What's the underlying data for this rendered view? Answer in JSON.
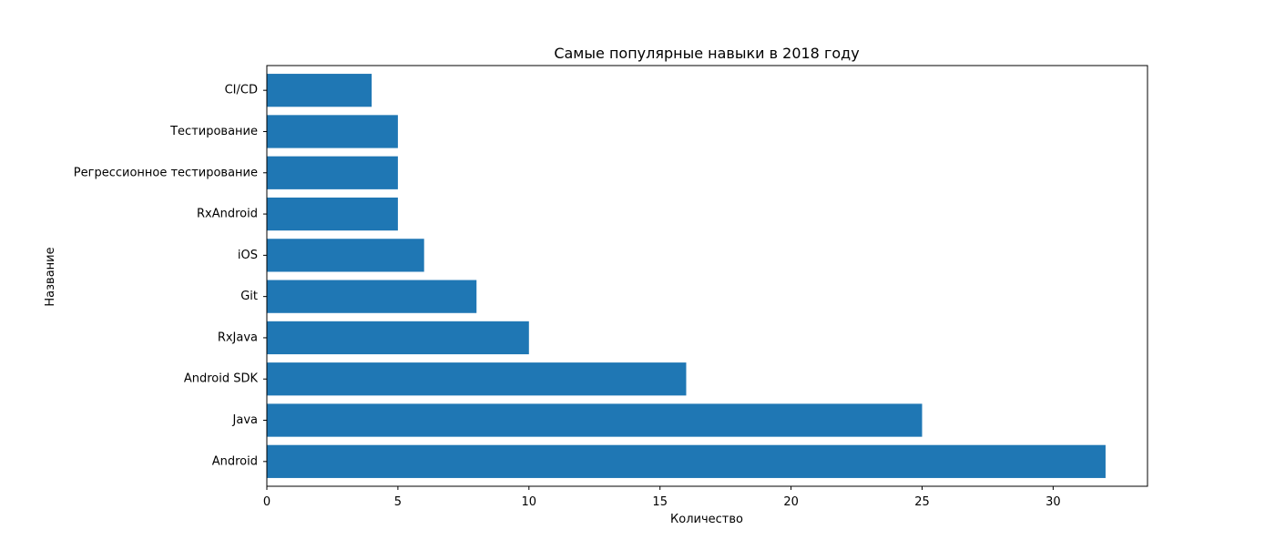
{
  "chart_data": {
    "type": "bar",
    "orientation": "horizontal",
    "title": "Самые популярные навыки в 2018 году",
    "xlabel": "Количество",
    "ylabel": "Название",
    "categories": [
      "Android",
      "Java",
      "Android SDK",
      "RxJava",
      "Git",
      "iOS",
      "RxAndroid",
      "Регрессионное тестирование",
      "Тестирование",
      "CI/CD"
    ],
    "values": [
      32,
      25,
      16,
      10,
      8,
      6,
      5,
      5,
      5,
      4
    ],
    "xlim": [
      0,
      33.6
    ],
    "xticks": [
      "0",
      "5",
      "10",
      "15",
      "20",
      "25",
      "30"
    ],
    "grid": false,
    "legend": "none",
    "bar_color": "#1f77b4"
  }
}
